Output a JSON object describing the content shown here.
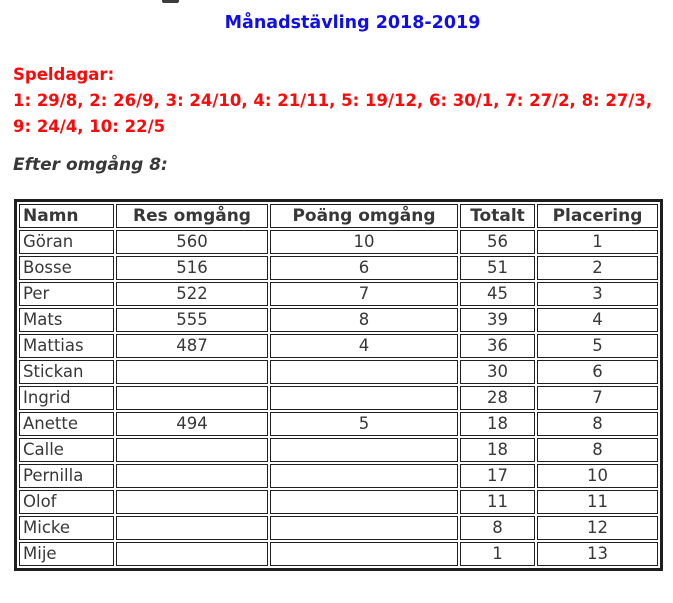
{
  "page": {
    "title": "Månadstävling 2018-2019"
  },
  "speldagar": {
    "heading": "Speldagar:",
    "lines": [
      "1: 29/8, 2: 26/9, 3: 24/10, 4: 21/11, 5: 19/12, 6: 30/1, 7: 27/2, 8: 27/3,",
      "9: 24/4, 10: 22/5"
    ]
  },
  "section": {
    "subtitle": "Efter omgång 8:"
  },
  "table": {
    "columns": [
      "Namn",
      "Res omgång",
      "Poäng omgång",
      "Totalt",
      "Placering"
    ],
    "rows": [
      [
        "Göran",
        "560",
        "10",
        "56",
        "1"
      ],
      [
        "Bosse",
        "516",
        "6",
        "51",
        "2"
      ],
      [
        "Per",
        "522",
        "7",
        "45",
        "3"
      ],
      [
        "Mats",
        "555",
        "8",
        "39",
        "4"
      ],
      [
        "Mattias",
        "487",
        "4",
        "36",
        "5"
      ],
      [
        "Stickan",
        "",
        "",
        "30",
        "6"
      ],
      [
        "Ingrid",
        "",
        "",
        "28",
        "7"
      ],
      [
        "Anette",
        "494",
        "5",
        "18",
        "8"
      ],
      [
        "Calle",
        "",
        "",
        "18",
        "8"
      ],
      [
        "Pernilla",
        "",
        "",
        "17",
        "10"
      ],
      [
        "Olof",
        "",
        "",
        "11",
        "11"
      ],
      [
        "Micke",
        "",
        "",
        "8",
        "12"
      ],
      [
        "Mije",
        "",
        "",
        "1",
        "13"
      ]
    ]
  },
  "colors": {
    "title": "#1010e6",
    "speldagar": "#f90b0b",
    "text": "#383838",
    "border": "#1f1f1f"
  }
}
